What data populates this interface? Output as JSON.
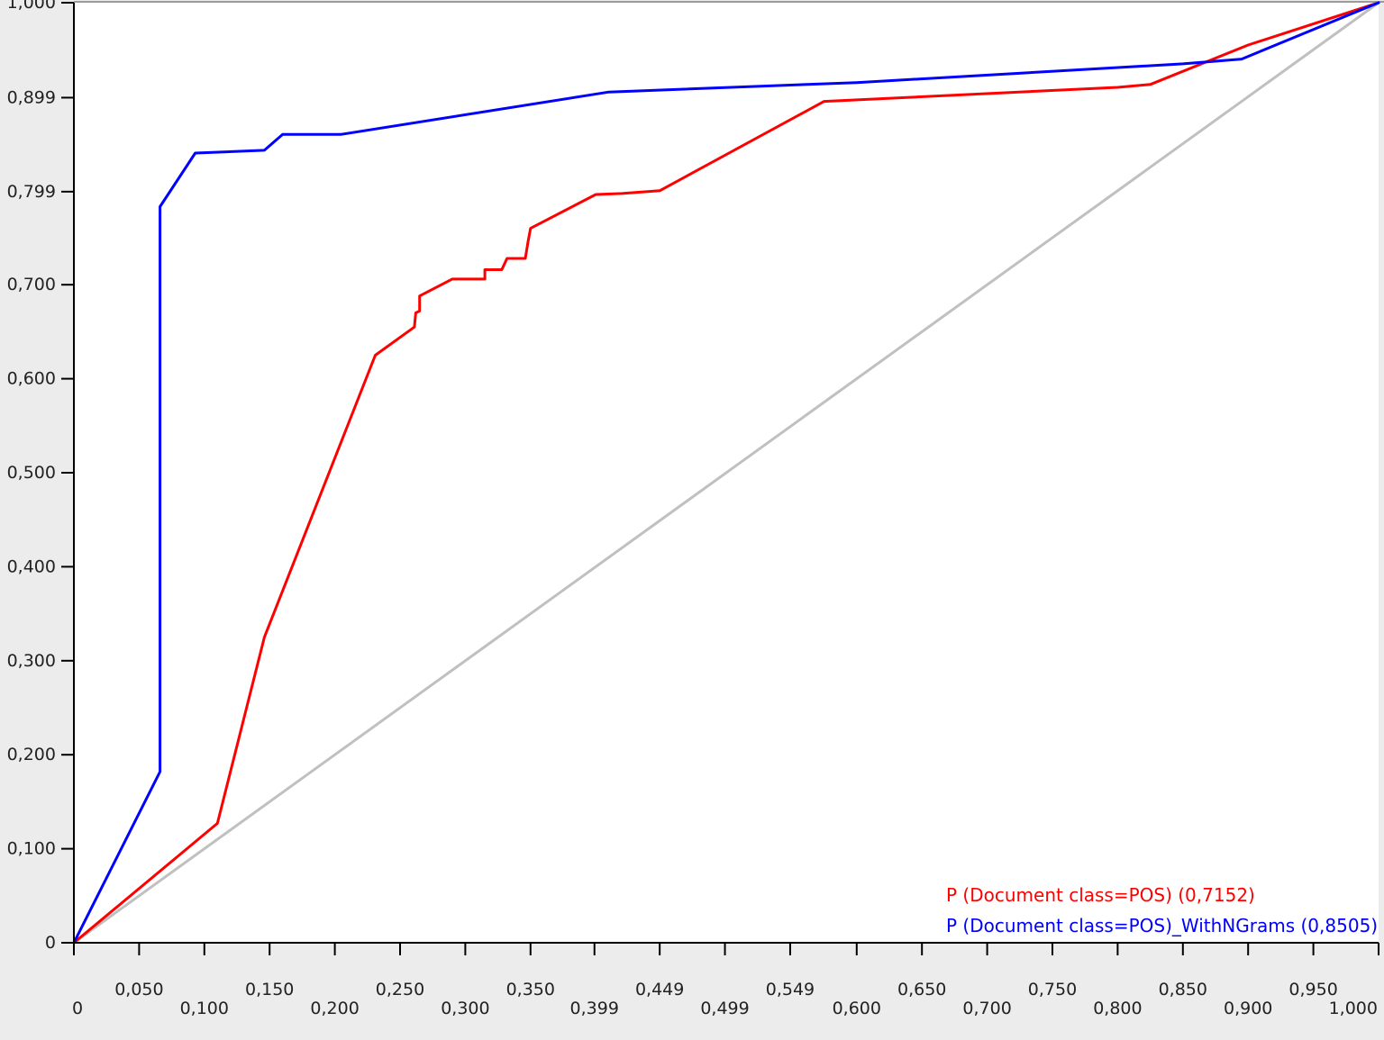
{
  "chart_data": {
    "type": "line",
    "title": "",
    "xlabel": "",
    "ylabel": "",
    "xlim": [
      0,
      1
    ],
    "ylim": [
      0,
      1
    ],
    "grid": false,
    "legend_placement": "bottom-right",
    "x_tick_labels": [
      {
        "value": 0.0,
        "label": "0"
      },
      {
        "value": 0.05,
        "label": "0,050"
      },
      {
        "value": 0.1,
        "label": "0,100"
      },
      {
        "value": 0.15,
        "label": "0,150"
      },
      {
        "value": 0.2,
        "label": "0,200"
      },
      {
        "value": 0.25,
        "label": "0,250"
      },
      {
        "value": 0.3,
        "label": "0,300"
      },
      {
        "value": 0.35,
        "label": "0,350"
      },
      {
        "value": 0.399,
        "label": "0,399"
      },
      {
        "value": 0.449,
        "label": "0,449"
      },
      {
        "value": 0.499,
        "label": "0,499"
      },
      {
        "value": 0.549,
        "label": "0,549"
      },
      {
        "value": 0.6,
        "label": "0,600"
      },
      {
        "value": 0.65,
        "label": "0,650"
      },
      {
        "value": 0.7,
        "label": "0,700"
      },
      {
        "value": 0.75,
        "label": "0,750"
      },
      {
        "value": 0.8,
        "label": "0,800"
      },
      {
        "value": 0.85,
        "label": "0,850"
      },
      {
        "value": 0.9,
        "label": "0,900"
      },
      {
        "value": 0.95,
        "label": "0,950"
      },
      {
        "value": 1.0,
        "label": "1,000"
      }
    ],
    "y_tick_labels": [
      {
        "value": 0.0,
        "label": "0"
      },
      {
        "value": 0.1,
        "label": "0,100"
      },
      {
        "value": 0.2,
        "label": "0,200"
      },
      {
        "value": 0.3,
        "label": "0,300"
      },
      {
        "value": 0.4,
        "label": "0,400"
      },
      {
        "value": 0.5,
        "label": "0,500"
      },
      {
        "value": 0.6,
        "label": "0,600"
      },
      {
        "value": 0.7,
        "label": "0,700"
      },
      {
        "value": 0.799,
        "label": "0,799"
      },
      {
        "value": 0.899,
        "label": "0,899"
      },
      {
        "value": 1.0,
        "label": "1,000"
      }
    ],
    "reference_line": {
      "x": [
        0,
        1
      ],
      "y": [
        0,
        1
      ],
      "color": "#c0c0c0"
    },
    "series": [
      {
        "name": "P (Document class=POS) (0,7152)",
        "color": "#ff0000",
        "x": [
          0.0,
          0.11,
          0.146,
          0.231,
          0.261,
          0.262,
          0.265,
          0.265,
          0.29,
          0.315,
          0.315,
          0.328,
          0.332,
          0.346,
          0.348,
          0.35,
          0.4,
          0.42,
          0.449,
          0.575,
          0.8,
          0.825,
          0.9,
          1.0
        ],
        "y": [
          0.0,
          0.127,
          0.325,
          0.625,
          0.655,
          0.67,
          0.672,
          0.688,
          0.706,
          0.706,
          0.716,
          0.716,
          0.728,
          0.728,
          0.745,
          0.76,
          0.796,
          0.797,
          0.8,
          0.895,
          0.91,
          0.913,
          0.955,
          1.0
        ]
      },
      {
        "name": "P (Document class=POS)_WithNGrams (0,8505)",
        "color": "#0000ff",
        "x": [
          0.0,
          0.066,
          0.066,
          0.093,
          0.146,
          0.16,
          0.205,
          0.41,
          0.6,
          0.85,
          0.895,
          1.0
        ],
        "y": [
          0.0,
          0.182,
          0.783,
          0.84,
          0.843,
          0.86,
          0.86,
          0.905,
          0.915,
          0.935,
          0.94,
          1.0
        ]
      }
    ]
  }
}
